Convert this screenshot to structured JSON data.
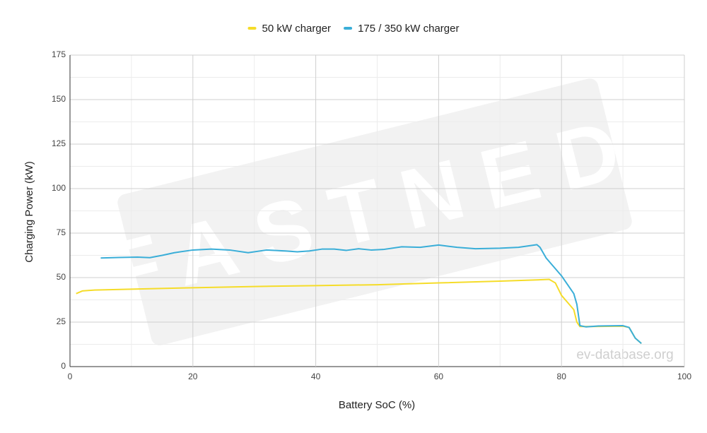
{
  "chart_data": {
    "type": "line",
    "x_label": "Battery SoC (%)",
    "y_label": "Charging Power (kW)",
    "watermark": "FASTNED",
    "source_label": "ev-database.org",
    "xlim": [
      0,
      100
    ],
    "xticks": [
      0,
      20,
      40,
      60,
      80,
      100
    ],
    "x_minor_ticks": [
      10,
      30,
      50,
      70,
      90
    ],
    "ylim": [
      0,
      175
    ],
    "yticks": [
      0,
      25,
      50,
      75,
      100,
      125,
      150,
      175
    ],
    "y_minor_ticks": [
      12.5,
      37.5,
      62.5,
      87.5,
      112.5,
      137.5,
      162.5
    ],
    "grid": true,
    "series": [
      {
        "name": "50 kW charger",
        "color": "#f5dc29",
        "x": [
          1,
          2,
          4,
          10,
          20,
          30,
          40,
          50,
          60,
          70,
          76,
          78,
          79,
          80,
          81,
          82,
          82.5,
          83,
          85,
          90,
          91,
          92,
          93
        ],
        "values": [
          41,
          42.5,
          43,
          43.5,
          44.3,
          45,
          45.5,
          46,
          47,
          48,
          48.7,
          49,
          47,
          40,
          36,
          32,
          25,
          22.5,
          22.5,
          22.7,
          22,
          16,
          13
        ]
      },
      {
        "name": "175 / 350 kW charger",
        "color": "#3aaed8",
        "x": [
          5,
          8,
          11,
          13,
          15,
          17,
          20,
          23,
          26,
          29,
          32,
          35,
          37,
          39,
          41,
          43,
          45,
          47,
          49,
          51,
          54,
          57,
          60,
          63,
          66,
          70,
          73,
          75,
          76,
          76.5,
          77.5,
          79,
          80,
          81,
          82,
          82.5,
          83,
          84,
          86,
          90,
          91,
          92,
          93
        ],
        "values": [
          61,
          61.3,
          61.5,
          61.2,
          62.5,
          64,
          65.5,
          66,
          65.5,
          64,
          65.5,
          65,
          64.5,
          65,
          66,
          66,
          65.3,
          66.2,
          65.5,
          65.8,
          67.3,
          67,
          68.3,
          67,
          66.2,
          66.5,
          67,
          68,
          68.5,
          67,
          61,
          55,
          51,
          46,
          41,
          35,
          23,
          22.3,
          22.8,
          23,
          22,
          16,
          13
        ]
      }
    ]
  }
}
